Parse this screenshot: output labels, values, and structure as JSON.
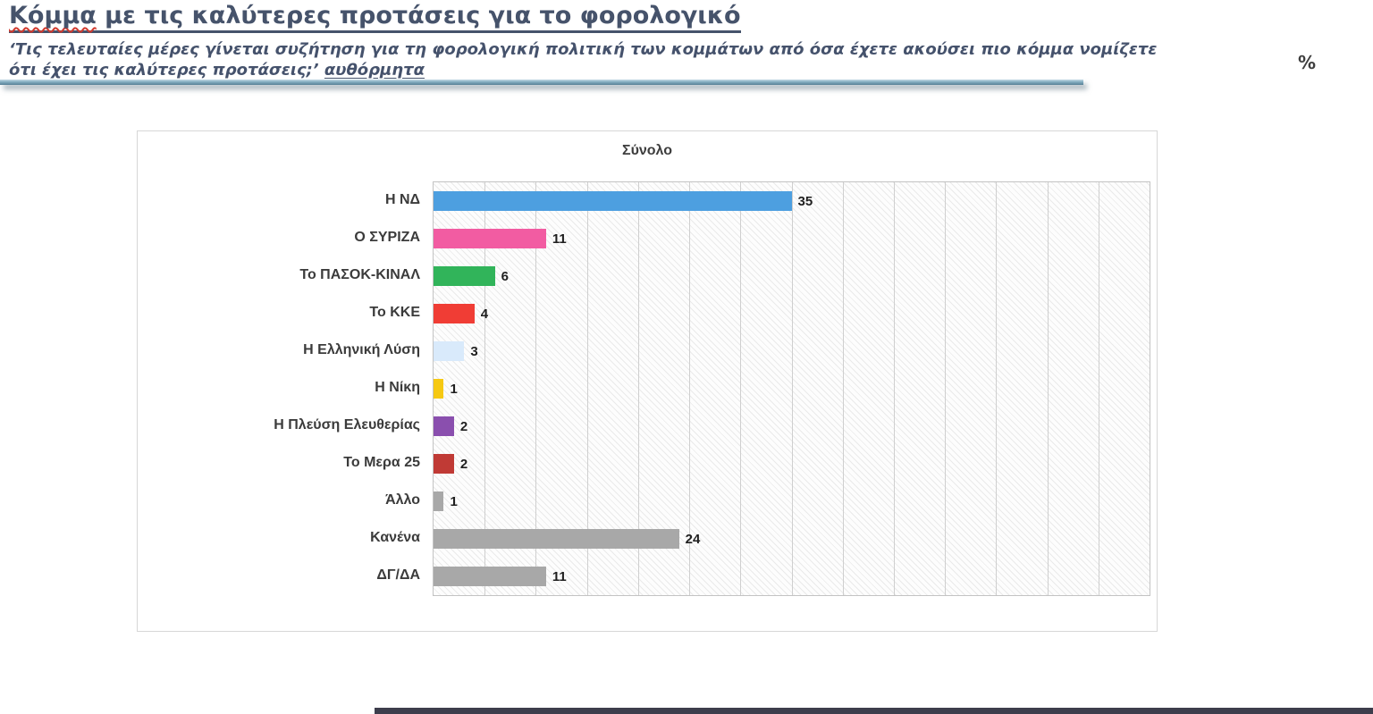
{
  "page": {
    "title_word": "Κόμμα",
    "title_rest": " με τις καλύτερες προτάσεις για το φορολογικό",
    "subtitle_line1": "‘Τις τελευταίες μέρες γίνεται συζήτηση για τη φορολογική πολιτική των κομμάτων από όσα έχετε ακούσει πιο κόμμα νομίζετε",
    "subtitle_line2": "ότι έχει τις καλύτερες προτάσεις;’ ",
    "subtitle_method": "αυθόρμητα",
    "percent_label": "%"
  },
  "chart_data": {
    "type": "bar",
    "orientation": "horizontal",
    "title": "Σύνολο",
    "unit": "%",
    "categories": [
      "Η ΝΔ",
      "Ο ΣΥΡΙΖΑ",
      "Το ΠΑΣΟΚ-ΚΙΝΑΛ",
      "Το ΚΚΕ",
      "Η Ελληνική Λύση",
      "Η Νίκη",
      "Η Πλεύση Ελευθερίας",
      "Το Μερα 25",
      "Άλλο",
      "Κανένα",
      "ΔΓ/ΔΑ"
    ],
    "values": [
      35,
      11,
      6,
      4,
      3,
      1,
      2,
      2,
      1,
      24,
      11
    ],
    "colors": [
      "#4d9fe0",
      "#f25ca2",
      "#31b45a",
      "#f03d35",
      "#d9eafb",
      "#f6c913",
      "#8a4fae",
      "#c03a35",
      "#a8a8a8",
      "#a8a8a8",
      "#a8a8a8"
    ],
    "xlim": [
      0,
      70
    ],
    "gridline_step": 5,
    "grid": true,
    "legend": "none",
    "plot_background": "diagonal-hatch"
  }
}
